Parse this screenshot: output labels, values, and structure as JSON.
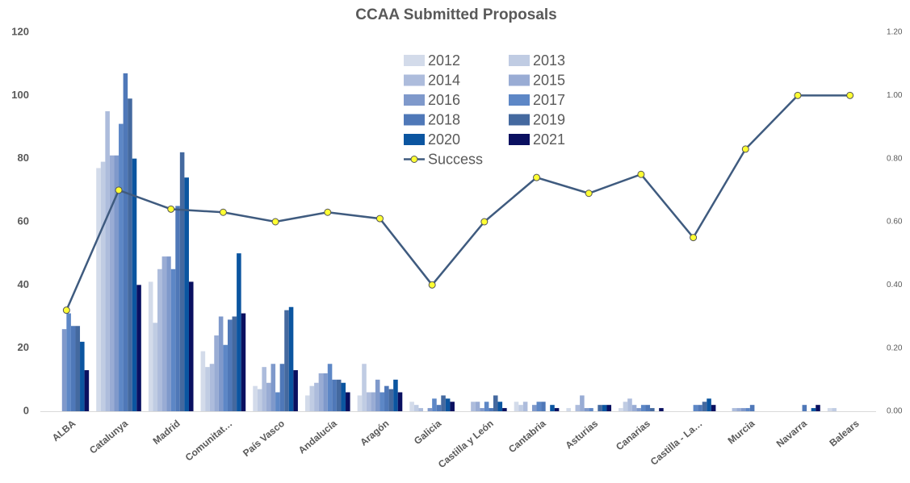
{
  "chart_data": {
    "type": "bar",
    "title": "CCAA  Submitted Proposals",
    "categories": [
      "ALBA",
      "Catalunya",
      "Madrid",
      "Comunitat…",
      "País Vasco",
      "Andalucía",
      "Aragón",
      "Galicia",
      "Castilla y León",
      "Cantabria",
      "Asturias",
      "Canarias",
      "Castilla - La…",
      "Murcia",
      "Navarra",
      "Balears"
    ],
    "series": [
      {
        "name": "2012",
        "color": "#d3dbea",
        "values": [
          0,
          77,
          41,
          19,
          8,
          5,
          5,
          3,
          0,
          3,
          1,
          1,
          0,
          0,
          0,
          1
        ]
      },
      {
        "name": "2013",
        "color": "#c0cce3",
        "values": [
          0,
          79,
          28,
          14,
          7,
          8,
          15,
          2,
          0,
          2,
          0,
          3,
          0,
          0,
          0,
          1
        ]
      },
      {
        "name": "2014",
        "color": "#adbcdc",
        "values": [
          0,
          95,
          45,
          15,
          14,
          9,
          6,
          1,
          3,
          3,
          2,
          4,
          0,
          1,
          0,
          0
        ]
      },
      {
        "name": "2015",
        "color": "#99acd4",
        "values": [
          0,
          81,
          49,
          24,
          9,
          12,
          6,
          0,
          3,
          0,
          5,
          2,
          0,
          1,
          0,
          0
        ]
      },
      {
        "name": "2016",
        "color": "#7f99cb",
        "values": [
          26,
          81,
          49,
          30,
          15,
          12,
          10,
          1,
          1,
          2,
          1,
          1,
          0,
          1,
          0,
          0
        ]
      },
      {
        "name": "2017",
        "color": "#5d87c6",
        "values": [
          31,
          91,
          45,
          21,
          6,
          15,
          6,
          4,
          3,
          3,
          1,
          2,
          2,
          1,
          0,
          0
        ]
      },
      {
        "name": "2018",
        "color": "#4f78b8",
        "values": [
          27,
          107,
          65,
          29,
          15,
          10,
          8,
          2,
          1,
          3,
          0,
          2,
          2,
          2,
          2,
          0
        ]
      },
      {
        "name": "2019",
        "color": "#44699f",
        "values": [
          27,
          99,
          82,
          30,
          32,
          10,
          7,
          5,
          5,
          0,
          2,
          1,
          3,
          0,
          0,
          0
        ]
      },
      {
        "name": "2020",
        "color": "#0b55a0",
        "values": [
          22,
          80,
          74,
          50,
          33,
          9,
          10,
          4,
          3,
          2,
          2,
          0,
          4,
          0,
          1,
          0
        ]
      },
      {
        "name": "2021",
        "color": "#0a1060",
        "values": [
          13,
          40,
          41,
          31,
          13,
          6,
          6,
          3,
          1,
          1,
          2,
          1,
          2,
          0,
          2,
          0
        ]
      },
      {
        "name": "Success",
        "color": "#3f5b7f",
        "marker_color": "#ffff33",
        "axis": "y2",
        "type": "line",
        "values": [
          0.32,
          0.7,
          0.64,
          0.63,
          0.6,
          0.63,
          0.61,
          0.4,
          0.6,
          0.74,
          0.69,
          0.75,
          0.55,
          0.83,
          1.0,
          1.0
        ]
      }
    ],
    "ylim": [
      0,
      120
    ],
    "yticks": [
      0,
      20,
      40,
      60,
      80,
      100,
      120
    ],
    "y2lim": [
      0,
      1.2
    ],
    "y2ticks": [
      {
        "value": 0,
        "label": "0.00"
      },
      {
        "value": 0.2,
        "label": "0.20"
      },
      {
        "value": 0.4,
        "label": "0.40"
      },
      {
        "value": 0.6,
        "label": "0.60"
      },
      {
        "value": 0.8,
        "label": "0.80"
      },
      {
        "value": 1,
        "label": "1.00"
      },
      {
        "value": 1.2,
        "label": "1.20"
      }
    ],
    "grid": false
  }
}
